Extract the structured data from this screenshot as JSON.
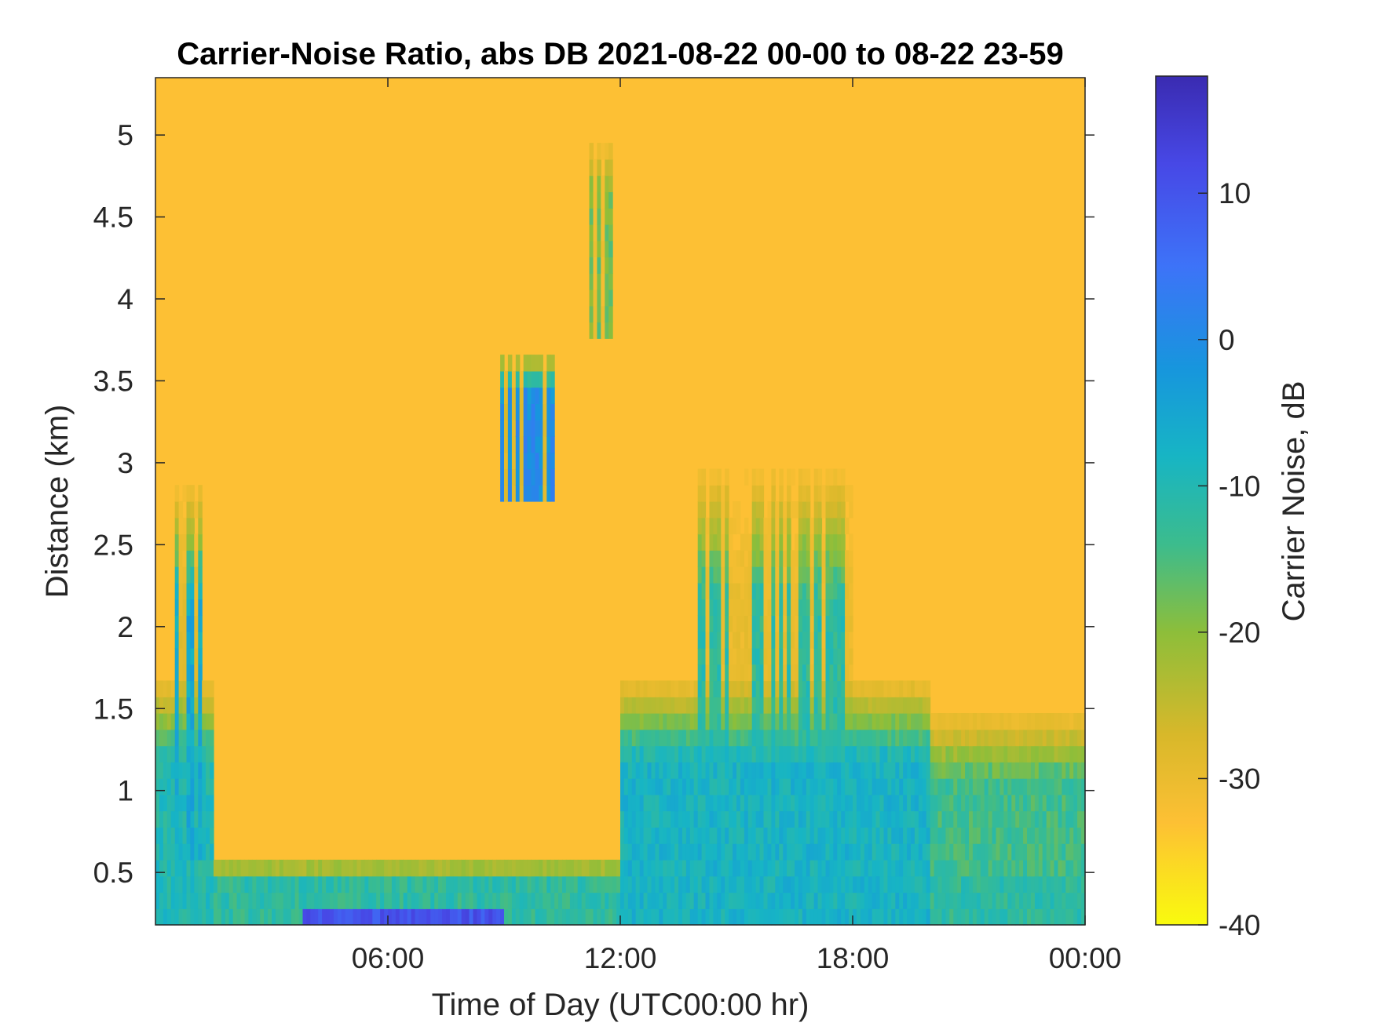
{
  "chart_data": {
    "type": "heatmap",
    "title": "Carrier-Noise Ratio, abs DB 2021-08-22 00-00 to 08-22 23-59",
    "xlabel": "Time of Day (UTC00:00 hr)",
    "ylabel": "Distance (km)",
    "x_ticks": [
      "06:00",
      "12:00",
      "18:00",
      "00:00"
    ],
    "x_tick_hours": [
      6,
      12,
      18,
      24
    ],
    "xlim_hours": [
      0,
      24
    ],
    "y_ticks": [
      "0.5",
      "1",
      "1.5",
      "2",
      "2.5",
      "3",
      "3.5",
      "4",
      "4.5",
      "5"
    ],
    "y_tick_values": [
      0.5,
      1,
      1.5,
      2,
      2.5,
      3,
      3.5,
      4,
      4.5,
      5
    ],
    "ylim_km": [
      0.18,
      5.35
    ],
    "colorbar": {
      "label": "Carrier Noise, dB",
      "ticks": [
        "10",
        "0",
        "-10",
        "-20",
        "-30",
        "-40"
      ],
      "tick_values": [
        10,
        0,
        -10,
        -20,
        -30,
        -40
      ],
      "range": [
        -40,
        18
      ],
      "colormap": "parula-reversed",
      "stops": [
        {
          "value": -40,
          "color": "#f9fb0e"
        },
        {
          "value": -33,
          "color": "#fdc034"
        },
        {
          "value": -27,
          "color": "#d8b82a"
        },
        {
          "value": -20,
          "color": "#8dbe3a"
        },
        {
          "value": -14,
          "color": "#3cbc8d"
        },
        {
          "value": -8,
          "color": "#17b5c4"
        },
        {
          "value": -2,
          "color": "#1796dd"
        },
        {
          "value": 5,
          "color": "#3d73f8"
        },
        {
          "value": 12,
          "color": "#4748e6"
        },
        {
          "value": 18,
          "color": "#3a2bb1"
        }
      ]
    },
    "background_value_db": -33,
    "features": [
      {
        "name": "near-surface layer",
        "hours": [
          0,
          24
        ],
        "km": [
          0.18,
          0.6
        ],
        "value_db": -12
      },
      {
        "name": "early morning boundary layer",
        "hours": [
          0,
          1.5
        ],
        "km": [
          0.18,
          1.7
        ],
        "value_db": -10
      },
      {
        "name": "morning plume",
        "hours": [
          0.5,
          1.2
        ],
        "km": [
          0.6,
          2.9
        ],
        "value_db": -6
      },
      {
        "name": "night strong return",
        "hours": [
          3.8,
          9
        ],
        "km": [
          0.18,
          0.28
        ],
        "value_db": 10
      },
      {
        "name": "afternoon mixed layer",
        "hours": [
          12,
          20
        ],
        "km": [
          0.18,
          1.7
        ],
        "value_db": -8
      },
      {
        "name": "late mixed layer",
        "hours": [
          20,
          24
        ],
        "km": [
          0.18,
          1.5
        ],
        "value_db": -14
      },
      {
        "name": "convective plumes",
        "hours": [
          14,
          18
        ],
        "km": [
          0.5,
          3.0
        ],
        "value_db": -12
      },
      {
        "name": "cloud return",
        "hours": [
          11.2,
          11.8
        ],
        "km": [
          3.8,
          5.0
        ],
        "value_db": -18
      },
      {
        "name": "cloud patches",
        "hours": [
          8.9,
          10.3
        ],
        "km": [
          2.8,
          3.7
        ],
        "value_db": 0
      }
    ]
  }
}
